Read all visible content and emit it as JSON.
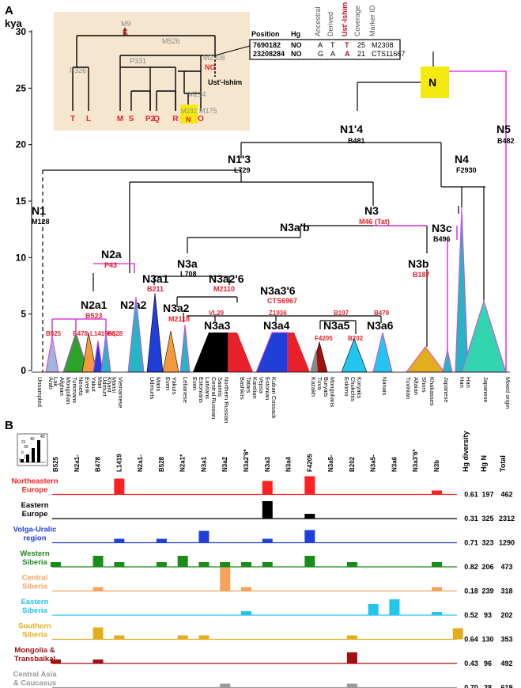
{
  "colors": {
    "magenta": "#e040e0",
    "red": "#e8202a",
    "panel_bg": "#f6e6cf",
    "highlight": "#f5ea10",
    "grey": "#9a9a9a"
  },
  "panel_a": {
    "label": "A",
    "yaxis_unit": "kya",
    "ticks": [
      "0",
      "5",
      "10",
      "15",
      "20",
      "25",
      "30"
    ],
    "inset": {
      "nodes": {
        "m9": "M9",
        "k": "K",
        "m526": "M526",
        "p326": "P326",
        "p331": "P331",
        "m2308": "M2308",
        "no": "NO",
        "m214": "M214",
        "m231": "M231",
        "n": "N",
        "m175": "M175",
        "ust": "Ust'-Ishim"
      },
      "leaves": [
        "T",
        "L",
        "M",
        "S",
        "P2",
        "Q",
        "R",
        "N",
        "O"
      ],
      "table_headers": [
        "Position",
        "Hg",
        "Ancestral",
        "Derived",
        "Ust'-Ishim",
        "Coverage",
        "Marker ID"
      ],
      "table_rows": [
        [
          "7690182",
          "NO",
          "A",
          "T",
          "T",
          "25",
          "M2308"
        ],
        [
          "23208284",
          "NO",
          "G",
          "A",
          "A",
          "21",
          "CTS11667"
        ]
      ]
    },
    "tree": {
      "n_root": "N",
      "n14": {
        "name": "N1'4",
        "marker": "B481"
      },
      "n5": {
        "name": "N5",
        "marker": "B482"
      },
      "n13": {
        "name": "N1'3",
        "marker": "L729"
      },
      "n4": {
        "name": "N4",
        "marker": "F2930"
      },
      "n1": {
        "name": "N1",
        "marker": "M128"
      },
      "n3": {
        "name": "N3",
        "marker": "M46",
        "marker2": "(Tat)"
      },
      "n3ab": {
        "name": "N3a'b"
      },
      "n3c": {
        "name": "N3c",
        "marker": "B496"
      },
      "n2a": {
        "name": "N2a",
        "marker": "P43"
      },
      "n3a": {
        "name": "N3a",
        "marker": "L708"
      },
      "n3b": {
        "name": "N3b",
        "marker": "B187"
      },
      "n3a1": {
        "name": "N3a1",
        "marker": "B211"
      },
      "n3a26": {
        "name": "N3a2'6",
        "marker": "M2110"
      },
      "n3a36": {
        "name": "N3a3'6",
        "marker": "CTS6967"
      },
      "n2a1": {
        "name": "N2a1",
        "marker": "B523"
      },
      "n2a2": {
        "name": "N2a2"
      },
      "n3a2": {
        "name": "N3a2",
        "marker": "M2118"
      },
      "n3a3": {
        "name": "N3a3",
        "marker": "VL29"
      },
      "n3a4": {
        "name": "N3a4",
        "marker": "Z1936"
      },
      "n3a5": {
        "name": "N3a5",
        "marker": "B197"
      },
      "n3a6": {
        "name": "N3a6",
        "marker": "B479"
      },
      "small_markers": [
        "B525",
        "B478",
        "L1419eq",
        "B528",
        "F4205",
        "B202"
      ]
    },
    "populations": [
      "Unsampled",
      "Arab",
      "Lak",
      "Afghan",
      "Mongolian",
      "Turkmans",
      "Nenets",
      "Evenk",
      "Yakut",
      "Mari",
      "Udmurt",
      "Khant",
      "Mansi",
      "Vietnamese",
      "Udmurts",
      "Maris",
      "Even",
      "Yakuts",
      "Lebanese",
      "Even",
      "Estonians",
      "Latvians",
      "Central Russian",
      "Saamis",
      "Northern Russian",
      "Bashkirs",
      "Tatars",
      "Karelian",
      "Vepsa",
      "Estonian",
      "Kuban Cossack",
      "Kazakh",
      "Tuva",
      "Buryats",
      "Mongolians",
      "Eskimo",
      "Chukchis",
      "Koryaks",
      "Nanais",
      "Tuvinian",
      "Altaian",
      "Shors",
      "Khakasses",
      "Japanese",
      "Han",
      "Han",
      "Japanese",
      "Mixed origin"
    ]
  },
  "panel_b": {
    "label": "B",
    "legend_ticks": [
      "0",
      "1",
      "6",
      "20",
      "21",
      "40",
      "40"
    ],
    "columns": [
      "B525",
      "N2a1-",
      "B478",
      "L1419",
      "N2a1-",
      "B528",
      "N2a1*",
      "N3a1",
      "N3a2",
      "N3a2'6*",
      "N3a3",
      "N3a4",
      "F4205",
      "N3a5-",
      "B202",
      "N3a5-",
      "N3a6",
      "N3a3'6*",
      "N3b"
    ],
    "stat_headers": [
      "Hg diversity",
      "Hg N",
      "Total"
    ],
    "rows": [
      {
        "region": "Northeastern Europe",
        "color": "#ff2020",
        "div": "0.61",
        "n": "197",
        "total": "462",
        "bars": [
          [
            3,
            2
          ],
          [
            10,
            1.7
          ],
          [
            12,
            2.3
          ],
          [
            18,
            0.5
          ]
        ]
      },
      {
        "region": "Eastern Europe",
        "color": "#000000",
        "div": "0.31",
        "n": "325",
        "total": "2312",
        "bars": [
          [
            10,
            2.2
          ],
          [
            12,
            0.6
          ]
        ]
      },
      {
        "region": "Volga-Uralic region",
        "color": "#1f3fd8",
        "div": "0.71",
        "n": "323",
        "total": "1290",
        "bars": [
          [
            3,
            0.5
          ],
          [
            5,
            0.5
          ],
          [
            7,
            1.5
          ],
          [
            10,
            0.5
          ],
          [
            12,
            1.6
          ]
        ]
      },
      {
        "region": "Western Siberia",
        "color": "#1a8c1a",
        "div": "0.82",
        "n": "206",
        "total": "473",
        "bars": [
          [
            0,
            0.6
          ],
          [
            2,
            1.4
          ],
          [
            3,
            0.6
          ],
          [
            5,
            0.6
          ],
          [
            6,
            1.4
          ],
          [
            7,
            0.6
          ],
          [
            8,
            0.6
          ],
          [
            9,
            0.6
          ],
          [
            10,
            0.6
          ],
          [
            12,
            1.4
          ],
          [
            14,
            0.6
          ],
          [
            18,
            0.6
          ]
        ]
      },
      {
        "region": "Central Siberia",
        "color": "#f7a35c",
        "div": "0.18",
        "n": "239",
        "total": "318",
        "bars": [
          [
            2,
            0.5
          ],
          [
            8,
            3
          ],
          [
            9,
            0.5
          ],
          [
            18,
            0.5
          ]
        ]
      },
      {
        "region": "Eastern Siberia",
        "color": "#22c5ee",
        "div": "0.52",
        "n": "93",
        "total": "202",
        "bars": [
          [
            9,
            0.5
          ],
          [
            15,
            1.4
          ],
          [
            16,
            2
          ],
          [
            18,
            0.4
          ]
        ]
      },
      {
        "region": "Southern Siberia",
        "color": "#e3ae1d",
        "div": "0.64",
        "n": "130",
        "total": "353",
        "bars": [
          [
            2,
            1.5
          ],
          [
            3,
            0.5
          ],
          [
            6,
            0.5
          ],
          [
            7,
            0.5
          ],
          [
            14,
            0.5
          ],
          [
            19,
            1.4
          ]
        ]
      },
      {
        "region": "Mongolia & Transbaikal",
        "color": "#a01010",
        "div": "0.43",
        "n": "96",
        "total": "492",
        "bars": [
          [
            0,
            0.5
          ],
          [
            2,
            0.5
          ],
          [
            14,
            1.4
          ]
        ]
      },
      {
        "region": "Central Asia & Caucasus",
        "color": "#9a9a9a",
        "div": "0.70",
        "n": "28",
        "total": "619",
        "bars": [
          [
            8,
            0.5
          ],
          [
            14,
            0.5
          ]
        ]
      }
    ]
  }
}
